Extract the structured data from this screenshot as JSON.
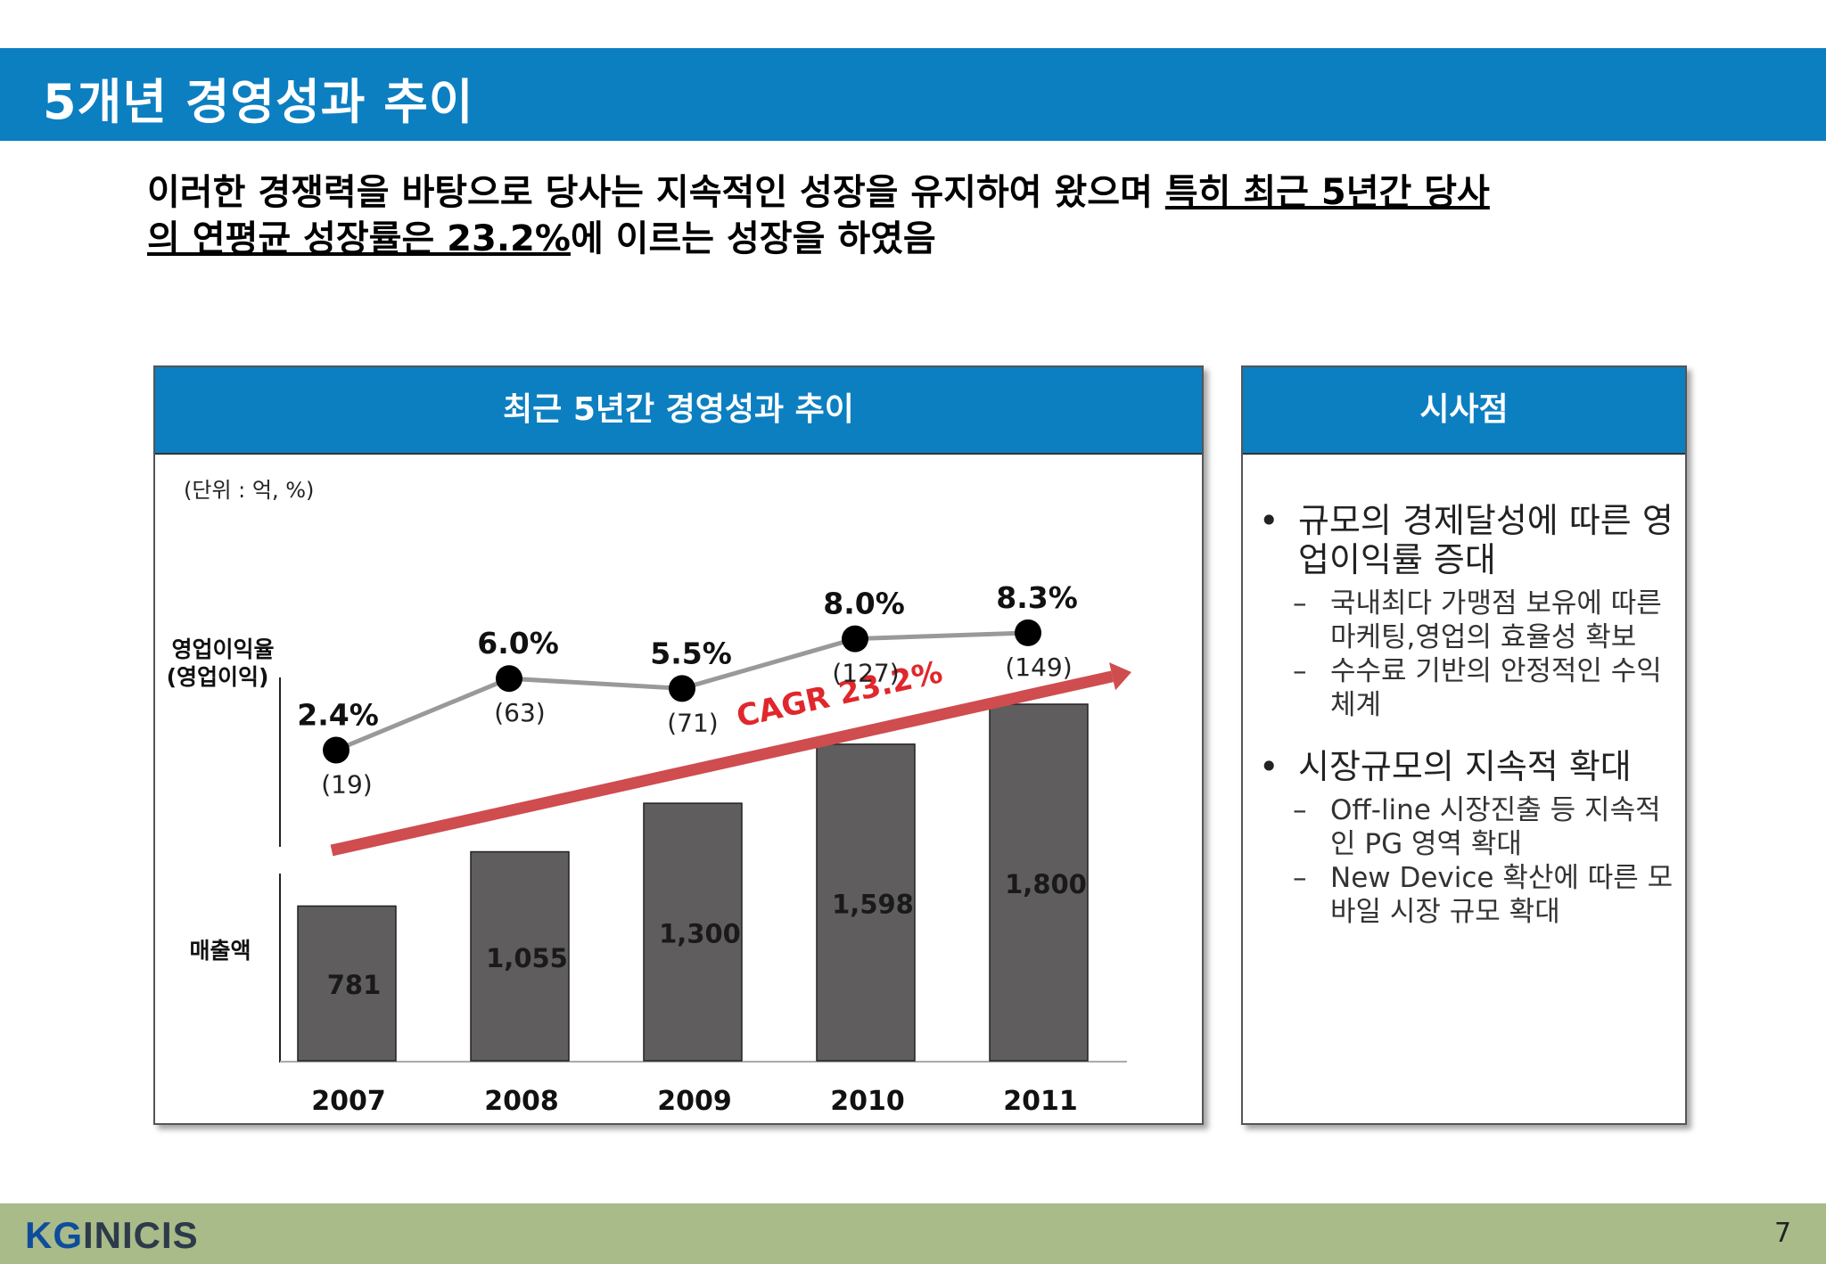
{
  "header": {
    "title": "5개년 경영성과 추이"
  },
  "lead": {
    "line1_plain": "이러한 경쟁력을 바탕으로  당사는 지속적인 성장을 유지하여 왔으며 ",
    "line1_underlined": "특히 최근 5년간 당사",
    "line2_underlined": "의 연평균 성장률은 23.2%",
    "line2_plain": "에 이르는 성장을 하였음"
  },
  "chart_panel": {
    "title": "최근 5년간 경영성과 추이"
  },
  "chart_data": {
    "type": "bar",
    "unit_note": "(단위 : 억, %)",
    "categories": [
      "2007",
      "2008",
      "2009",
      "2010",
      "2011"
    ],
    "bar_series": {
      "axis_label": "매출액",
      "values": [
        781,
        1055,
        1300,
        1598,
        1800
      ],
      "labels": [
        "781",
        "1,055",
        "1,300",
        "1,598",
        "1,800"
      ],
      "color": "#5f5d5e"
    },
    "line_series": {
      "axis_label_1": "영업이익율",
      "axis_label_2": "(영업이익)",
      "margin_values": [
        2.4,
        6.0,
        5.5,
        8.0,
        8.3
      ],
      "margin_labels": [
        "2.4%",
        "6.0%",
        "5.5%",
        "8.0%",
        "8.3%"
      ],
      "profit_labels": [
        "(19)",
        "(63)",
        "(71)",
        "(127)",
        "(149)"
      ],
      "color": "#999999"
    },
    "annotation": {
      "text": "CAGR 23.2%",
      "color": "#e0272b"
    }
  },
  "implications": {
    "title": "시사점",
    "bullet_symbol": "•",
    "dash_symbol": "–",
    "items": [
      {
        "text": "규모의 경제달성에 따른 영업이익률 증대",
        "subs": [
          "국내최다 가맹점 보유에 따른 마케팅,영업의 효율성 확보",
          "수수료 기반의 안정적인 수익 체계"
        ]
      },
      {
        "text": "시장규모의 지속적 확대",
        "subs": [
          "Off-line 시장진출 등 지속적인 PG 영역 확대",
          "New Device 확산에 따른 모바일 시장 규모 확대"
        ]
      }
    ]
  },
  "footer": {
    "logo_kg": "KG",
    "logo_inicis": "INICIS",
    "page": "7"
  },
  "colors": {
    "brand_blue": "#0c7fc1",
    "footer_green": "#a9bb89"
  }
}
